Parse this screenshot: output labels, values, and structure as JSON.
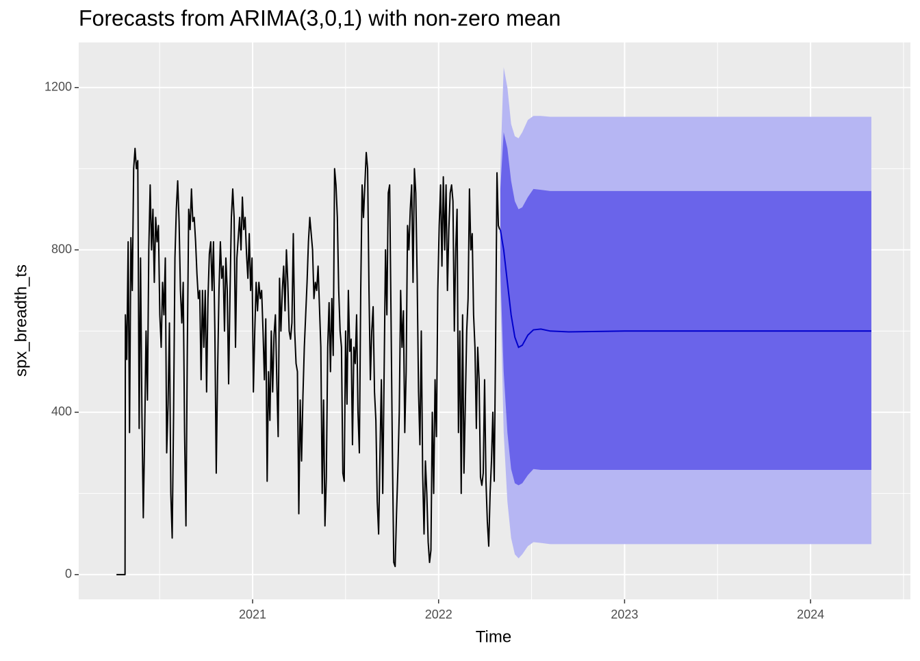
{
  "chart_data": {
    "type": "forecast",
    "title": "Forecasts from ARIMA(3,0,1) with non-zero mean",
    "x_label": "Time",
    "y_label": "spx_breadth_ts",
    "xlim": [
      2020.065,
      2024.537
    ],
    "ylim": [
      -61,
      1311
    ],
    "xticks": [
      2021,
      2022,
      2023,
      2024
    ],
    "yticks": [
      0,
      400,
      800,
      1200
    ],
    "xminor": [
      2020.5,
      2021.5,
      2022.5,
      2023.5,
      2024.5
    ],
    "yminor": [
      200,
      600,
      1000
    ],
    "grid": true,
    "background": "#ebebeb",
    "series": [
      {
        "color": "#000000",
        "x": [
          2020.268,
          2020.314,
          2020.316,
          2020.3234,
          2020.3308,
          2020.3382,
          2020.3456,
          2020.353,
          2020.3604,
          2020.3678,
          2020.3752,
          2020.3826,
          2020.39,
          2020.3974,
          2020.4048,
          2020.4122,
          2020.4196,
          2020.427,
          2020.4344,
          2020.4418,
          2020.4492,
          2020.4566,
          2020.464,
          2020.4714,
          2020.4788,
          2020.4862,
          2020.4936,
          2020.501,
          2020.5084,
          2020.5158,
          2020.5232,
          2020.5306,
          2020.538,
          2020.5454,
          2020.5528,
          2020.5602,
          2020.5676,
          2020.575,
          2020.5824,
          2020.5898,
          2020.5972,
          2020.6046,
          2020.612,
          2020.6194,
          2020.6268,
          2020.6342,
          2020.6416,
          2020.649,
          2020.6564,
          2020.6638,
          2020.6712,
          2020.6786,
          2020.686,
          2020.6934,
          2020.7008,
          2020.7082,
          2020.7156,
          2020.723,
          2020.7304,
          2020.7378,
          2020.7452,
          2020.7526,
          2020.76,
          2020.7674,
          2020.7748,
          2020.7822,
          2020.7896,
          2020.797,
          2020.8044,
          2020.8118,
          2020.8192,
          2020.8266,
          2020.834,
          2020.8414,
          2020.8488,
          2020.8562,
          2020.8636,
          2020.871,
          2020.8784,
          2020.8858,
          2020.8932,
          2020.9006,
          2020.908,
          2020.9154,
          2020.9228,
          2020.9302,
          2020.9376,
          2020.945,
          2020.9524,
          2020.9598,
          2020.9672,
          2020.9746,
          2020.982,
          2020.9894,
          2020.9968,
          2021.0042,
          2021.0116,
          2021.019,
          2021.0264,
          2021.0338,
          2021.0412,
          2021.0486,
          2021.056,
          2021.0634,
          2021.0708,
          2021.0782,
          2021.0856,
          2021.093,
          2021.1004,
          2021.1078,
          2021.1152,
          2021.1226,
          2021.13,
          2021.1374,
          2021.1448,
          2021.1522,
          2021.1596,
          2021.167,
          2021.1744,
          2021.1818,
          2021.1892,
          2021.1966,
          2021.204,
          2021.2114,
          2021.2188,
          2021.2262,
          2021.2336,
          2021.241,
          2021.2484,
          2021.2558,
          2021.2632,
          2021.2706,
          2021.278,
          2021.2854,
          2021.2928,
          2021.3002,
          2021.3076,
          2021.315,
          2021.3224,
          2021.3298,
          2021.3372,
          2021.3446,
          2021.352,
          2021.3594,
          2021.3668,
          2021.3742,
          2021.3816,
          2021.389,
          2021.3964,
          2021.4038,
          2021.4112,
          2021.4186,
          2021.426,
          2021.4334,
          2021.4408,
          2021.4482,
          2021.4556,
          2021.463,
          2021.4704,
          2021.4778,
          2021.4852,
          2021.4926,
          2021.5,
          2021.5074,
          2021.5148,
          2021.5222,
          2021.5296,
          2021.537,
          2021.5444,
          2021.5518,
          2021.5592,
          2021.5666,
          2021.574,
          2021.5814,
          2021.5888,
          2021.5962,
          2021.6036,
          2021.611,
          2021.6184,
          2021.6258,
          2021.6332,
          2021.6406,
          2021.648,
          2021.6554,
          2021.6628,
          2021.6702,
          2021.6776,
          2021.685,
          2021.6924,
          2021.6998,
          2021.7072,
          2021.7146,
          2021.722,
          2021.7294,
          2021.7368,
          2021.7442,
          2021.7516,
          2021.759,
          2021.7664,
          2021.7738,
          2021.7812,
          2021.7886,
          2021.796,
          2021.8034,
          2021.8108,
          2021.8182,
          2021.8256,
          2021.833,
          2021.8404,
          2021.8478,
          2021.8552,
          2021.8626,
          2021.87,
          2021.8774,
          2021.8848,
          2021.8922,
          2021.8996,
          2021.907,
          2021.9144,
          2021.9218,
          2021.9292,
          2021.9366,
          2021.944,
          2021.9514,
          2021.9588,
          2021.9662,
          2021.9736,
          2021.981,
          2021.9884,
          2021.9958,
          2022.0032,
          2022.0106,
          2022.018,
          2022.0254,
          2022.0328,
          2022.0402,
          2022.0476,
          2022.055,
          2022.0624,
          2022.0698,
          2022.0772,
          2022.0846,
          2022.092,
          2022.0994,
          2022.1068,
          2022.1142,
          2022.1216,
          2022.129,
          2022.1364,
          2022.1438,
          2022.1512,
          2022.1586,
          2022.166,
          2022.1734,
          2022.1808,
          2022.1882,
          2022.1956,
          2022.203,
          2022.2104,
          2022.2178,
          2022.2252,
          2022.2326,
          2022.24,
          2022.2474,
          2022.2548,
          2022.2622,
          2022.2696,
          2022.277,
          2022.2844,
          2022.2918,
          2022.2992,
          2022.3066,
          2022.314,
          2022.3214,
          2022.3288
        ],
        "values": [
          0,
          0,
          640,
          530,
          820,
          350,
          830,
          700,
          1000,
          1050,
          1000,
          1020,
          360,
          780,
          400,
          140,
          350,
          600,
          430,
          800,
          960,
          800,
          900,
          720,
          880,
          820,
          860,
          640,
          560,
          720,
          640,
          780,
          300,
          420,
          620,
          200,
          90,
          390,
          780,
          900,
          970,
          870,
          700,
          620,
          720,
          350,
          120,
          560,
          900,
          850,
          950,
          870,
          880,
          820,
          740,
          680,
          700,
          480,
          700,
          560,
          700,
          450,
          680,
          790,
          820,
          700,
          820,
          600,
          250,
          500,
          700,
          820,
          730,
          760,
          600,
          780,
          700,
          470,
          690,
          880,
          950,
          880,
          560,
          780,
          830,
          880,
          800,
          930,
          850,
          880,
          790,
          730,
          840,
          700,
          780,
          450,
          600,
          720,
          650,
          720,
          680,
          700,
          600,
          480,
          630,
          230,
          500,
          380,
          600,
          450,
          590,
          640,
          480,
          340,
          730,
          600,
          700,
          760,
          650,
          800,
          720,
          600,
          580,
          620,
          840,
          600,
          520,
          500,
          150,
          430,
          280,
          440,
          560,
          640,
          720,
          820,
          880,
          840,
          800,
          680,
          720,
          700,
          760,
          660,
          560,
          200,
          430,
          120,
          240,
          560,
          670,
          500,
          680,
          540,
          1000,
          960,
          880,
          700,
          600,
          560,
          250,
          230,
          600,
          420,
          700,
          550,
          580,
          320,
          560,
          520,
          640,
          400,
          300,
          700,
          960,
          880,
          960,
          1040,
          1000,
          700,
          480,
          600,
          660,
          450,
          380,
          180,
          100,
          300,
          480,
          200,
          500,
          800,
          640,
          940,
          960,
          640,
          300,
          30,
          20,
          150,
          260,
          400,
          700,
          560,
          650,
          350,
          500,
          860,
          800,
          900,
          960,
          720,
          1000,
          940,
          730,
          450,
          320,
          600,
          250,
          100,
          280,
          200,
          80,
          30,
          60,
          400,
          200,
          480,
          340,
          700,
          860,
          960,
          760,
          980,
          800,
          960,
          700,
          850,
          940,
          960,
          920,
          600,
          800,
          900,
          350,
          600,
          200,
          640,
          250,
          420,
          600,
          680,
          950,
          800,
          840,
          640,
          560,
          360,
          560,
          480,
          240,
          220,
          250,
          480,
          230,
          130,
          70,
          200,
          280,
          400,
          230,
          570,
          990,
          860,
          850
        ]
      }
    ],
    "forecast": {
      "mean_color": "#0000cc",
      "color80": "#6a64ea",
      "color95": "#b6b6f3",
      "x": [
        2022.332,
        2022.35,
        2022.37,
        2022.39,
        2022.41,
        2022.43,
        2022.45,
        2022.48,
        2022.51,
        2022.55,
        2022.6,
        2022.7,
        2023,
        2023.5,
        2024,
        2024.327
      ],
      "mean": [
        850,
        800,
        720,
        640,
        585,
        560,
        565,
        590,
        603,
        605,
        600,
        598,
        600,
        600,
        600,
        600
      ],
      "hi80": [
        950,
        1090,
        1050,
        970,
        920,
        900,
        905,
        930,
        950,
        948,
        945,
        945,
        945,
        945,
        945,
        945
      ],
      "lo80": [
        750,
        500,
        350,
        260,
        225,
        220,
        225,
        245,
        260,
        258,
        258,
        258,
        258,
        258,
        258,
        258
      ],
      "hi95": [
        1000,
        1250,
        1200,
        1110,
        1080,
        1075,
        1090,
        1120,
        1130,
        1130,
        1128,
        1128,
        1128,
        1128,
        1128,
        1128
      ],
      "lo95": [
        700,
        350,
        180,
        90,
        50,
        40,
        50,
        70,
        80,
        78,
        75,
        75,
        75,
        75,
        75,
        75
      ]
    }
  }
}
